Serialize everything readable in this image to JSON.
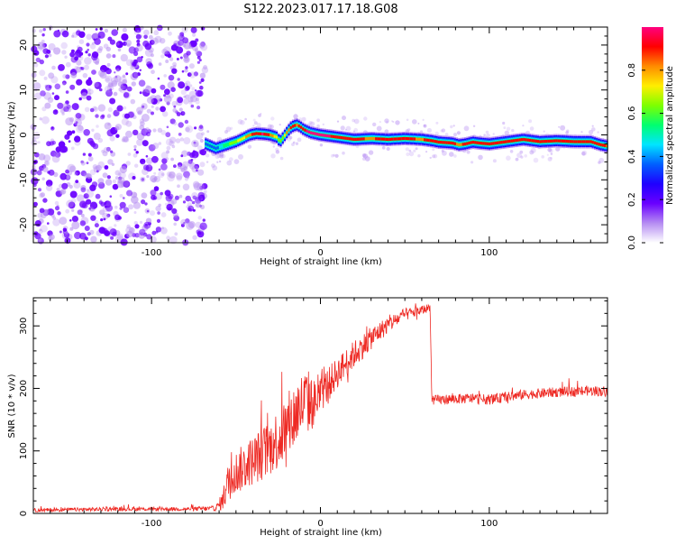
{
  "title": "S122.2023.017.17.18.G08",
  "colors": {
    "snr_line": "#ee2a24",
    "frame": "#000000",
    "colormap": [
      "#ffffff",
      "#b58cf2",
      "#6a00ff",
      "#1f00ff",
      "#0060ff",
      "#00e5ff",
      "#00ff70",
      "#7dff00",
      "#ffee00",
      "#ff8c00",
      "#ff0000",
      "#ff007f"
    ]
  },
  "chart_data": [
    {
      "type": "heatmap",
      "title": "S122.2023.017.17.18.G08",
      "xlabel": "Height of straight line (km)",
      "ylabel": "Frequency (Hz)",
      "xlim": [
        -170,
        170
      ],
      "ylim": [
        -24,
        24
      ],
      "x_ticks": [
        -100,
        0,
        100
      ],
      "y_ticks": [
        -20,
        -10,
        0,
        10,
        20
      ],
      "colorbar": {
        "label": "Normalized spectral amplitude",
        "range": [
          0.0,
          1.0
        ],
        "ticks": [
          0.0,
          0.2,
          0.4,
          0.6,
          0.8
        ],
        "tick_labels": [
          "0.0",
          "0.2",
          "0.4",
          "0.6",
          "0.8"
        ]
      },
      "noise_region_x": [
        -170,
        -68
      ],
      "ridge": {
        "x": [
          -68,
          -62,
          -58,
          -54,
          -50,
          -46,
          -42,
          -38,
          -34,
          -30,
          -26,
          -24,
          -22,
          -20,
          -18,
          -16,
          -14,
          -12,
          -10,
          -6,
          0,
          10,
          20,
          30,
          40,
          50,
          60,
          66,
          70,
          74,
          78,
          82,
          86,
          90,
          94,
          100,
          110,
          120,
          130,
          140,
          150,
          160,
          166,
          170
        ],
        "freq": [
          -2,
          -3,
          -2.5,
          -2,
          -1.5,
          -0.8,
          0,
          0.3,
          0.2,
          0,
          -0.5,
          -1.5,
          -0.5,
          0.5,
          1.5,
          2,
          2.2,
          1.8,
          1.2,
          0.5,
          0,
          -0.5,
          -1,
          -0.8,
          -1,
          -0.8,
          -1,
          -1.3,
          -1.6,
          -1.7,
          -1.8,
          -2.2,
          -2,
          -1.6,
          -1.8,
          -2,
          -1.5,
          -1,
          -1.5,
          -1.3,
          -1.5,
          -1.5,
          -2.2,
          -2.5
        ],
        "amp": [
          0.35,
          0.3,
          0.45,
          0.55,
          0.62,
          0.7,
          0.8,
          0.88,
          0.92,
          0.8,
          0.65,
          0.55,
          0.6,
          0.75,
          0.82,
          0.85,
          0.8,
          0.85,
          0.9,
          0.92,
          0.92,
          0.9,
          0.85,
          0.8,
          0.88,
          0.85,
          0.8,
          0.88,
          0.9,
          0.88,
          0.85,
          0.8,
          0.85,
          0.9,
          0.88,
          0.9,
          0.85,
          0.82,
          0.88,
          0.9,
          0.9,
          0.88,
          0.85,
          0.8
        ]
      }
    },
    {
      "type": "line",
      "xlabel": "Height of straight line (km)",
      "ylabel": "SNR (10 * v/v)",
      "xlim": [
        -170,
        170
      ],
      "ylim": [
        0,
        345
      ],
      "x_ticks": [
        -100,
        0,
        100
      ],
      "y_ticks": [
        0,
        100,
        200,
        300
      ],
      "series": [
        {
          "x": [
            -170,
            -150,
            -120,
            -100,
            -80,
            -62,
            -58,
            -54,
            -50,
            -40,
            -30,
            -20,
            -12,
            -8,
            -4,
            0,
            10,
            20,
            30,
            40,
            50,
            60,
            65,
            66,
            70,
            80,
            90,
            100,
            110,
            120,
            130,
            140,
            150,
            160,
            170
          ],
          "values": [
            5,
            6,
            7,
            7,
            7,
            8,
            20,
            55,
            65,
            85,
            105,
            135,
            170,
            180,
            175,
            190,
            225,
            255,
            280,
            302,
            318,
            325,
            330,
            180,
            182,
            183,
            184,
            182,
            186,
            190,
            192,
            194,
            195,
            196,
            195
          ],
          "noise": [
            3,
            3,
            3,
            3,
            3,
            4,
            15,
            35,
            35,
            40,
            45,
            55,
            55,
            55,
            40,
            30,
            25,
            22,
            18,
            14,
            10,
            8,
            6,
            8,
            8,
            8,
            8,
            8,
            8,
            8,
            8,
            8,
            8,
            8,
            8
          ]
        }
      ]
    }
  ]
}
